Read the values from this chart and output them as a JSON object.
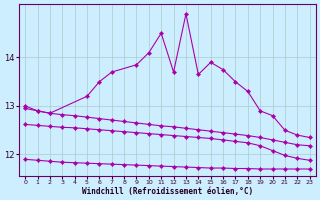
{
  "xlabel": "Windchill (Refroidissement éolien,°C)",
  "background_color": "#cceeff",
  "grid_color": "#aacccc",
  "line_color": "#aa00aa",
  "s1x": [
    0,
    1,
    2,
    5,
    6,
    7,
    9,
    10,
    11,
    12,
    13,
    14,
    15,
    16,
    17,
    18,
    19,
    20,
    21,
    22,
    23
  ],
  "s1y": [
    13.0,
    12.9,
    12.85,
    13.2,
    13.5,
    13.7,
    13.85,
    14.1,
    14.5,
    13.7,
    14.9,
    13.65,
    13.9,
    13.75,
    13.5,
    13.3,
    12.9,
    12.8,
    12.5,
    12.4,
    12.35
  ],
  "s2x": [
    0,
    1,
    2,
    3,
    4,
    5,
    6,
    7,
    8,
    9,
    10,
    11,
    12,
    13,
    14,
    15,
    16,
    17,
    18,
    19,
    20,
    21,
    22,
    23
  ],
  "s2y": [
    12.62,
    12.6,
    12.58,
    12.56,
    12.55,
    12.53,
    12.51,
    12.49,
    12.47,
    12.45,
    12.43,
    12.41,
    12.39,
    12.37,
    12.35,
    12.33,
    12.3,
    12.27,
    12.24,
    12.18,
    12.08,
    11.98,
    11.92,
    11.88
  ],
  "s3x": [
    0,
    1,
    2,
    3,
    4,
    5,
    6,
    7,
    8,
    9,
    10,
    11,
    12,
    13,
    14,
    15,
    16,
    17,
    18,
    19,
    20,
    21,
    22,
    23
  ],
  "s3y": [
    12.95,
    12.9,
    12.85,
    12.82,
    12.8,
    12.77,
    12.74,
    12.71,
    12.68,
    12.65,
    12.62,
    12.59,
    12.57,
    12.54,
    12.51,
    12.48,
    12.45,
    12.42,
    12.39,
    12.35,
    12.3,
    12.25,
    12.2,
    12.18
  ],
  "s4x": [
    0,
    1,
    2,
    3,
    4,
    5,
    6,
    7,
    8,
    9,
    10,
    11,
    12,
    13,
    14,
    15,
    16,
    17,
    18,
    19,
    20,
    21,
    22,
    23
  ],
  "s4y": [
    11.9,
    11.88,
    11.86,
    11.84,
    11.83,
    11.82,
    11.81,
    11.8,
    11.79,
    11.78,
    11.77,
    11.76,
    11.75,
    11.74,
    11.73,
    11.72,
    11.72,
    11.71,
    11.71,
    11.7,
    11.7,
    11.7,
    11.7,
    11.7
  ],
  "ylim": [
    11.55,
    15.1
  ],
  "yticks": [
    12,
    13,
    14
  ],
  "xticks": [
    0,
    1,
    2,
    3,
    4,
    5,
    6,
    7,
    8,
    9,
    10,
    11,
    12,
    13,
    14,
    15,
    16,
    17,
    18,
    19,
    20,
    21,
    22,
    23
  ]
}
